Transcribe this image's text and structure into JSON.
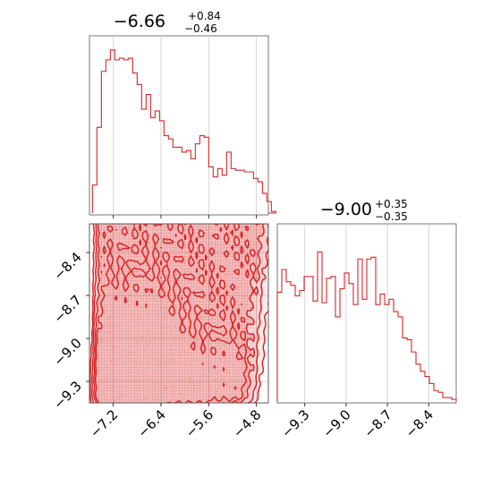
{
  "chart_data": {
    "type": "corner",
    "color": "#d62728",
    "grid": true,
    "panels": [
      {
        "kind": "histogram",
        "variable": 0,
        "title": {
          "value": "−6.66",
          "plus": "+0.84",
          "minus": "−0.46"
        },
        "xlim": [
          -7.6,
          -4.6
        ],
        "xticks": [
          -7.2,
          -6.4,
          -5.6,
          -4.8
        ],
        "bin_width": 0.075,
        "counts": [
          0.17,
          0.52,
          0.86,
          0.93,
          0.99,
          0.93,
          0.94,
          0.93,
          0.94,
          0.85,
          0.78,
          0.63,
          0.72,
          0.58,
          0.62,
          0.56,
          0.47,
          0.45,
          0.4,
          0.4,
          0.37,
          0.38,
          0.33,
          0.42,
          0.47,
          0.46,
          0.28,
          0.22,
          0.27,
          0.23,
          0.37,
          0.27,
          0.26,
          0.26,
          0.25,
          0.25,
          0.21,
          0.19,
          0.12,
          0.07,
          0.01
        ]
      },
      {
        "kind": "contour",
        "x_variable": 0,
        "y_variable": 1,
        "xlim": [
          -7.6,
          -4.6
        ],
        "ylim": [
          -9.45,
          -8.2
        ],
        "xticks": [
          -7.2,
          -6.4,
          -5.6,
          -4.8
        ],
        "xtick_labels": [
          "−7.2",
          "−6.4",
          "−5.6",
          "−4.8"
        ],
        "yticks": [
          -8.4,
          -8.7,
          -9.0,
          -9.3
        ],
        "ytick_labels": [
          "−8.4",
          "−8.7",
          "−9.0",
          "−9.3"
        ]
      },
      {
        "kind": "histogram",
        "variable": 1,
        "title": {
          "value": "−9.00",
          "plus": "+0.35",
          "minus": "−0.35"
        },
        "xlim": [
          -9.5,
          -8.2
        ],
        "xticks": [
          -9.3,
          -9.0,
          -8.7,
          -8.4
        ],
        "xtick_labels": [
          "−9.3",
          "−9.0",
          "−8.7",
          "−8.4"
        ],
        "bin_width": 0.0325,
        "counts": [
          0.62,
          0.75,
          0.68,
          0.66,
          0.6,
          0.63,
          0.71,
          0.71,
          0.57,
          0.85,
          0.56,
          0.7,
          0.71,
          0.48,
          0.64,
          0.73,
          0.67,
          0.55,
          0.81,
          0.58,
          0.81,
          0.82,
          0.55,
          0.61,
          0.55,
          0.58,
          0.51,
          0.48,
          0.36,
          0.35,
          0.28,
          0.21,
          0.17,
          0.14,
          0.1,
          0.06,
          0.05,
          0.02,
          0.02,
          0.01
        ]
      }
    ]
  }
}
